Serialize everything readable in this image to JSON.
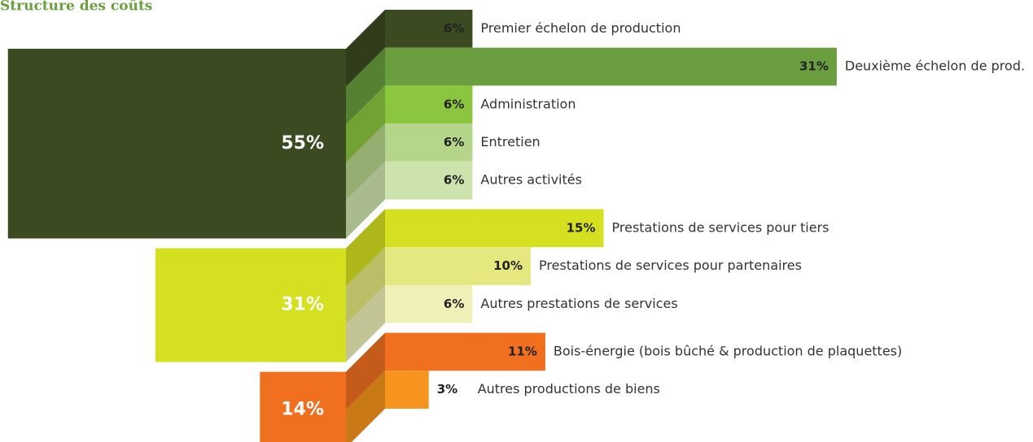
{
  "chart_data": {
    "type": "breakdown",
    "title": "Structure des coûts",
    "groups": [
      {
        "value": 55,
        "value_label": "55%",
        "color": "#3b4a20",
        "items": [
          {
            "name": "Premier échelon de production",
            "value": 6,
            "value_label": "6%",
            "color": "#3b4a20"
          },
          {
            "name": "Deuxième échelon de prod.",
            "value": 31,
            "value_label": "31%",
            "color": "#6a9e3f"
          },
          {
            "name": "Administration",
            "value": 6,
            "value_label": "6%",
            "color": "#8cc63f"
          },
          {
            "name": "Entretien",
            "value": 6,
            "value_label": "6%",
            "color": "#b5d68a"
          },
          {
            "name": "Autres activités",
            "value": 6,
            "value_label": "6%",
            "color": "#cde3ae"
          }
        ]
      },
      {
        "value": 31,
        "value_label": "31%",
        "color": "#d4e020",
        "items": [
          {
            "name": "Prestations de services pour tiers",
            "value": 15,
            "value_label": "15%",
            "color": "#d4e020"
          },
          {
            "name": "Prestations de services pour partenaires",
            "value": 10,
            "value_label": "10%",
            "color": "#e4e87e"
          },
          {
            "name": "Autres prestations de services",
            "value": 6,
            "value_label": "6%",
            "color": "#eef0b8"
          }
        ]
      },
      {
        "value": 14,
        "value_label": "14%",
        "color": "#f07020",
        "items": [
          {
            "name": "Bois-énergie (bois bûché & production de plaquettes)",
            "value": 11,
            "value_label": "11%",
            "color": "#f07020"
          },
          {
            "name": "Autres productions de biens",
            "value": 3,
            "value_label": "3%",
            "color": "#f7941d"
          }
        ]
      }
    ]
  }
}
